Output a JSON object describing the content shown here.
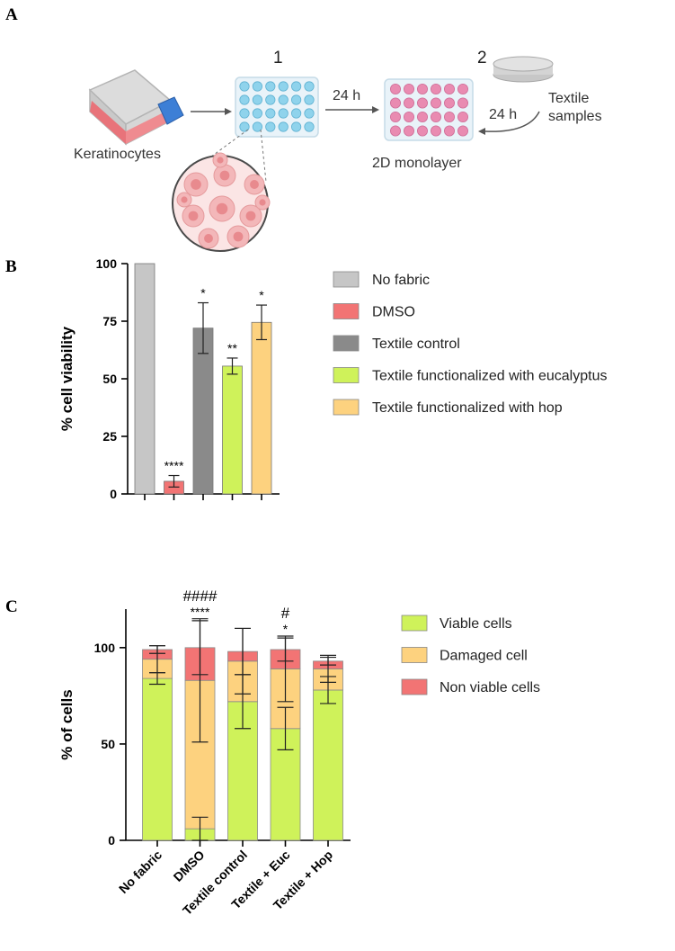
{
  "panels": {
    "a": {
      "letter": "A"
    },
    "b": {
      "letter": "B"
    },
    "c": {
      "letter": "C"
    }
  },
  "schematic": {
    "step1_number": "1",
    "step2_number": "2",
    "time_1": "24 h",
    "time_2": "24 h",
    "cells_label": "Keratinocytes",
    "monolayer_label": "2D monolayer",
    "textile_label_line1": "Textile",
    "textile_label_line2": "samples",
    "icons": [
      "culture-flask",
      "well-plate",
      "cell-magnification",
      "textile-disc"
    ],
    "colors": {
      "flask_media": "#e8737a",
      "flask_cap": "#3d7fd6",
      "wells_empty": "#8fd3ec",
      "wells_seeded": "#e98bb1",
      "plate": "#e9f3f9"
    }
  },
  "chart_data": [
    {
      "type": "bar",
      "panel": "B",
      "ylabel": "% cell viability",
      "xlabel": "",
      "ylim": [
        0,
        100
      ],
      "yticks": [
        "0",
        "25",
        "50",
        "75",
        "100"
      ],
      "categories": [
        "No fabric",
        "DMSO",
        "Textile control",
        "Textile functionalized with eucalyptus",
        "Textile functionalized with hop"
      ],
      "values": [
        100,
        5.5,
        72,
        55.5,
        74.5
      ],
      "errors": [
        0,
        2.5,
        11,
        3.5,
        7.5
      ],
      "significance": [
        "",
        "****",
        "*",
        "**",
        "*"
      ],
      "colors": [
        "#c6c6c6",
        "#f27474",
        "#8a8a8a",
        "#cff25a",
        "#fdd27f"
      ],
      "legend_position": "right"
    },
    {
      "type": "bar",
      "stacked": true,
      "panel": "C",
      "ylabel": "% of cells",
      "xlabel": "",
      "ylim": [
        0,
        120
      ],
      "yticks": [
        "0",
        "50",
        "100"
      ],
      "categories": [
        "No fabric",
        "DMSO",
        "Textile control",
        "Textile + Euc",
        "Textile + Hop"
      ],
      "series": [
        {
          "name": "Viable cells",
          "color": "#cff25a",
          "values": [
            84,
            6,
            72,
            58,
            78
          ],
          "errors": [
            3,
            6,
            14,
            11,
            7
          ]
        },
        {
          "name": "Damaged cell",
          "color": "#fdd27f",
          "values": [
            10,
            77,
            21,
            31,
            11
          ],
          "errors": [
            7,
            32,
            17,
            17,
            7
          ]
        },
        {
          "name": "Non viable cells",
          "color": "#f27474",
          "values": [
            5,
            17,
            5,
            10,
            4
          ],
          "errors": [
            2,
            14,
            12,
            6,
            2
          ]
        }
      ],
      "significance_top": [
        "",
        "####",
        "",
        "#",
        ""
      ],
      "significance_bottom": [
        "",
        "****",
        "",
        "*",
        ""
      ],
      "legend_position": "right"
    }
  ]
}
